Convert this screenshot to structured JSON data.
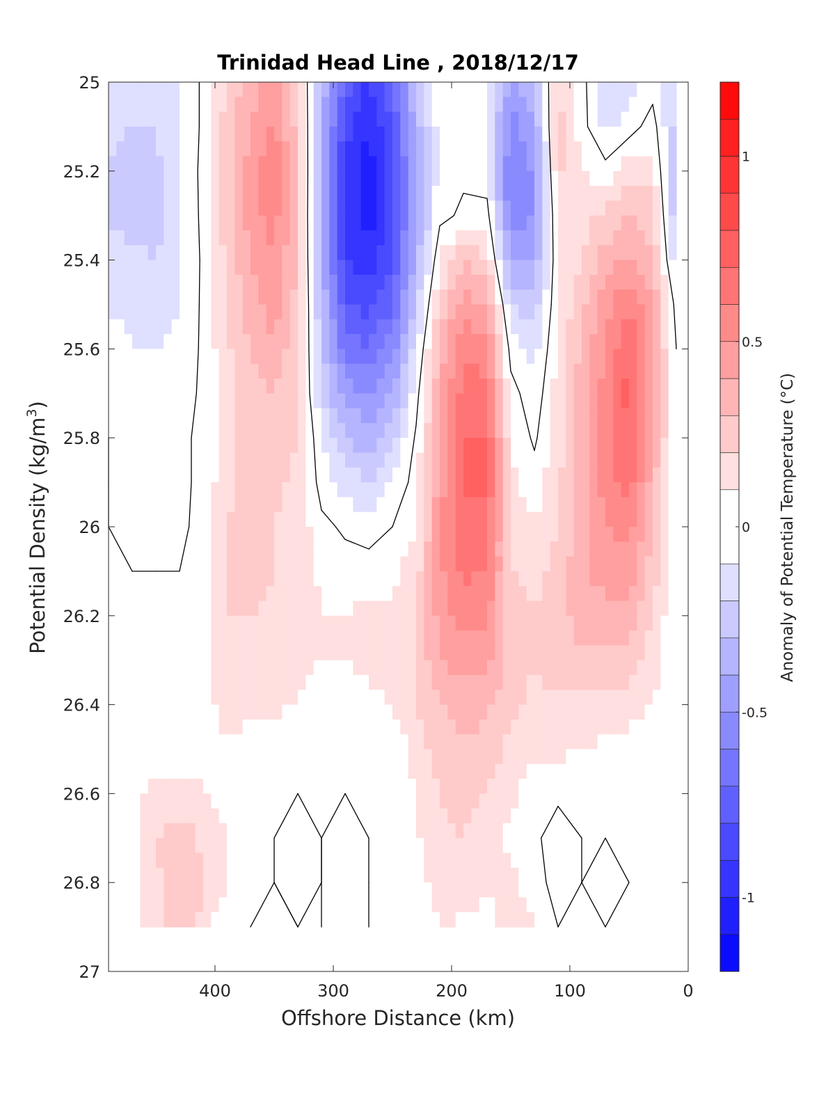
{
  "chart_data": {
    "type": "contour",
    "title": "Trinidad Head Line , 2018/12/17",
    "xlabel": "Offshore Distance (km)",
    "ylabel_main": "Potential Density (kg/m",
    "ylabel_sup": "3",
    "ylabel_close": ")",
    "xlim": [
      490,
      0
    ],
    "ylim": [
      25.0,
      27.0
    ],
    "x_reversed": true,
    "y_reversed": true,
    "x_ticks": [
      400,
      300,
      200,
      100,
      0
    ],
    "x_tick_labels": [
      "400",
      "300",
      "200",
      "100",
      "0"
    ],
    "y_ticks": [
      25.0,
      25.2,
      25.4,
      25.6,
      25.8,
      26.0,
      26.2,
      26.4,
      26.6,
      26.8,
      27.0
    ],
    "y_tick_labels": [
      "25",
      "25.2",
      "25.4",
      "25.6",
      "25.8",
      "26",
      "26.2",
      "26.4",
      "26.6",
      "26.8",
      "27"
    ],
    "x": [
      490,
      470,
      450,
      430,
      410,
      390,
      370,
      350,
      330,
      310,
      290,
      270,
      250,
      230,
      210,
      190,
      170,
      150,
      130,
      110,
      90,
      70,
      50,
      30,
      10
    ],
    "y": [
      25.0,
      25.1,
      25.2,
      25.3,
      25.4,
      25.5,
      25.6,
      25.7,
      25.8,
      25.9,
      26.0,
      26.1,
      26.2,
      26.3,
      26.4,
      26.5,
      26.6,
      26.7,
      26.8,
      26.9
    ],
    "z": [
      [
        -0.12,
        -0.17,
        -0.2,
        -0.1,
        0.02,
        0.22,
        0.35,
        0.48,
        0.2,
        -0.3,
        -0.75,
        -0.92,
        -0.7,
        -0.3,
        -0.05,
        -0.05,
        -0.05,
        -0.45,
        -0.3,
        0.2,
        0.05,
        -0.2,
        -0.15,
        -0.05,
        -0.2
      ],
      [
        -0.17,
        -0.2,
        -0.2,
        -0.1,
        0.02,
        0.25,
        0.4,
        0.52,
        0.25,
        -0.35,
        -0.85,
        -1.0,
        -0.8,
        -0.35,
        -0.05,
        -0.05,
        -0.08,
        -0.55,
        -0.4,
        0.25,
        0.05,
        -0.15,
        -0.05,
        0.05,
        -0.25
      ],
      [
        -0.2,
        -0.24,
        -0.24,
        -0.1,
        0.03,
        0.25,
        0.45,
        0.58,
        0.28,
        -0.38,
        -0.95,
        -1.05,
        -0.85,
        -0.4,
        -0.05,
        -0.02,
        -0.08,
        -0.6,
        -0.48,
        0.22,
        0.1,
        0.05,
        0.15,
        0.15,
        -0.3
      ],
      [
        -0.22,
        -0.24,
        -0.24,
        -0.12,
        0.03,
        0.25,
        0.45,
        0.55,
        0.28,
        -0.4,
        -0.95,
        -1.05,
        -0.85,
        -0.4,
        -0.03,
        0.02,
        0.05,
        -0.6,
        -0.5,
        0.15,
        0.15,
        0.22,
        0.3,
        0.25,
        -0.3
      ],
      [
        -0.15,
        -0.18,
        -0.2,
        -0.12,
        0.02,
        0.22,
        0.4,
        0.5,
        0.28,
        -0.38,
        -0.9,
        -0.95,
        -0.8,
        -0.35,
        0.1,
        0.3,
        0.2,
        -0.4,
        -0.38,
        0.1,
        0.2,
        0.35,
        0.42,
        0.3,
        -0.2
      ],
      [
        -0.1,
        -0.15,
        -0.15,
        -0.1,
        0.02,
        0.2,
        0.35,
        0.45,
        0.25,
        -0.3,
        -0.8,
        -0.85,
        -0.7,
        -0.25,
        0.22,
        0.45,
        0.4,
        -0.2,
        -0.25,
        0.1,
        0.28,
        0.45,
        0.6,
        0.4,
        -0.05
      ],
      [
        -0.05,
        -0.1,
        -0.1,
        -0.08,
        0.02,
        0.18,
        0.3,
        0.38,
        0.22,
        -0.25,
        -0.65,
        -0.7,
        -0.55,
        -0.15,
        0.35,
        0.58,
        0.55,
        -0.05,
        -0.15,
        0.12,
        0.32,
        0.5,
        0.68,
        0.4,
        0.0
      ],
      [
        -0.02,
        -0.08,
        -0.08,
        -0.05,
        0.02,
        0.18,
        0.28,
        0.3,
        0.2,
        -0.2,
        -0.45,
        -0.5,
        -0.4,
        -0.05,
        0.4,
        0.65,
        0.62,
        0.05,
        -0.08,
        0.15,
        0.35,
        0.55,
        0.75,
        0.4,
        0.0
      ],
      [
        0.0,
        -0.05,
        -0.05,
        -0.02,
        0.02,
        0.18,
        0.25,
        0.25,
        0.2,
        -0.1,
        -0.3,
        -0.35,
        -0.25,
        0.02,
        0.42,
        0.7,
        0.7,
        0.1,
        -0.02,
        0.15,
        0.35,
        0.55,
        0.7,
        0.4,
        0.0
      ],
      [
        0.0,
        -0.03,
        -0.05,
        -0.02,
        0.02,
        0.18,
        0.25,
        0.22,
        0.18,
        -0.05,
        -0.15,
        -0.2,
        -0.1,
        0.05,
        0.45,
        0.72,
        0.72,
        0.12,
        0.05,
        0.18,
        0.35,
        0.55,
        0.65,
        0.35,
        0.0
      ],
      [
        0.0,
        -0.03,
        -0.05,
        -0.02,
        0.03,
        0.2,
        0.24,
        0.2,
        0.18,
        0.03,
        -0.02,
        -0.05,
        0.0,
        0.1,
        0.48,
        0.68,
        0.65,
        0.15,
        0.1,
        0.2,
        0.35,
        0.5,
        0.55,
        0.3,
        0.0
      ],
      [
        0.0,
        0.0,
        0.0,
        0.0,
        0.05,
        0.2,
        0.22,
        0.2,
        0.15,
        0.08,
        0.05,
        0.05,
        0.08,
        0.15,
        0.48,
        0.62,
        0.6,
        0.2,
        0.15,
        0.25,
        0.38,
        0.45,
        0.45,
        0.25,
        0.0
      ],
      [
        0.0,
        0.0,
        0.0,
        0.0,
        0.05,
        0.2,
        0.2,
        0.18,
        0.15,
        0.1,
        0.1,
        0.12,
        0.12,
        0.18,
        0.45,
        0.55,
        0.52,
        0.25,
        0.2,
        0.25,
        0.35,
        0.35,
        0.35,
        0.2,
        0.0
      ],
      [
        0.0,
        0.0,
        0.0,
        0.0,
        0.05,
        0.18,
        0.15,
        0.15,
        0.12,
        0.1,
        0.1,
        0.12,
        0.12,
        0.2,
        0.4,
        0.45,
        0.42,
        0.25,
        0.2,
        0.25,
        0.28,
        0.28,
        0.25,
        0.15,
        0.0
      ],
      [
        0.05,
        0.0,
        0.0,
        0.0,
        0.05,
        0.15,
        0.12,
        0.12,
        0.1,
        0.05,
        0.05,
        0.08,
        0.1,
        0.2,
        0.3,
        0.35,
        0.32,
        0.22,
        0.18,
        0.18,
        0.18,
        0.18,
        0.15,
        0.1,
        0.0
      ],
      [
        0.1,
        0.0,
        0.0,
        0.0,
        0.03,
        0.08,
        0.05,
        0.03,
        0.03,
        0.0,
        0.0,
        0.0,
        0.02,
        0.15,
        0.25,
        0.28,
        0.25,
        0.18,
        0.12,
        0.12,
        0.1,
        0.08,
        0.05,
        0.02,
        0.0
      ],
      [
        0.1,
        0.05,
        0.15,
        0.15,
        0.12,
        0.05,
        0.02,
        0.0,
        0.0,
        0.0,
        0.0,
        0.0,
        0.0,
        0.1,
        0.2,
        0.22,
        0.2,
        0.12,
        0.05,
        0.02,
        0.02,
        0.0,
        0.0,
        0.0,
        0.0
      ],
      [
        0.05,
        0.05,
        0.2,
        0.25,
        0.18,
        0.1,
        0.05,
        0.0,
        -0.05,
        0.0,
        -0.05,
        0.0,
        0.0,
        0.08,
        0.18,
        0.2,
        0.15,
        0.08,
        0.02,
        -0.05,
        0.0,
        0.0,
        0.0,
        0.0,
        0.0
      ],
      [
        0.02,
        0.05,
        0.18,
        0.28,
        0.2,
        0.1,
        0.02,
        0.0,
        -0.08,
        0.0,
        -0.05,
        0.0,
        0.0,
        0.05,
        0.15,
        0.18,
        0.12,
        0.12,
        0.05,
        -0.05,
        0.0,
        -0.05,
        0.0,
        0.0,
        0.0
      ],
      [
        0.02,
        0.05,
        0.18,
        0.25,
        0.18,
        0.0,
        0.0,
        -0.05,
        0.0,
        0.0,
        -0.05,
        0.0,
        0.0,
        0.02,
        0.1,
        0.08,
        0.05,
        0.15,
        0.1,
        0.0,
        0.0,
        0.0,
        0.0,
        0.0,
        0.0
      ]
    ],
    "contour_levels": [
      -1.2,
      -1.1,
      -1.0,
      -0.9,
      -0.8,
      -0.7,
      -0.6,
      -0.5,
      -0.4,
      -0.3,
      -0.2,
      -0.1,
      0.1,
      0.2,
      0.3,
      0.4,
      0.5,
      0.6,
      0.7,
      0.8,
      0.9,
      1.0,
      1.1,
      1.2
    ],
    "zero_contour": true,
    "colorbar": {
      "label": "Anomaly of Potential Temperature (°C)",
      "min": -1.2,
      "max": 1.2,
      "ticks": [
        1,
        0.5,
        0,
        -0.5,
        -1
      ],
      "tick_labels": [
        "1",
        "0.5",
        "0",
        "-0.5",
        "-1"
      ],
      "colormap": "blue-white-red"
    },
    "colors": {
      "negative_end": "#0000ff",
      "neutral": "#ffffff",
      "positive_end": "#ff0000",
      "contour_line": "#000000"
    },
    "grid": false,
    "legend": "none"
  }
}
